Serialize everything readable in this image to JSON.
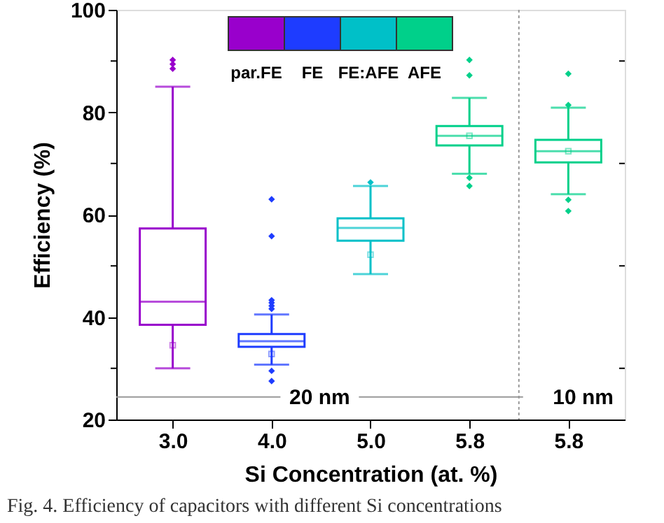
{
  "chart_data": {
    "type": "box",
    "xlabel": "Si Concentration (at. %)",
    "ylabel": "Efficiency (%)",
    "categories": [
      "3.0",
      "4.0",
      "5.0",
      "5.8",
      "5.8"
    ],
    "ylim": [
      20,
      100
    ],
    "yticks": [
      20,
      {
        "value": 30,
        "label": null
      },
      40,
      {
        "value": 50,
        "label": null
      },
      60,
      {
        "value": 70,
        "label": null
      },
      80,
      {
        "value": 90,
        "label": null
      },
      100
    ],
    "series": [
      {
        "name": "par.FE",
        "color": "#9900cc",
        "boxes": [
          {
            "low": 30,
            "q1": 38.5,
            "median": 43,
            "q3": 57.3,
            "high": 85,
            "mean": 34.5,
            "outliers": [
              88.5,
              89.4,
              90.2
            ]
          },
          null,
          null,
          null,
          null
        ]
      },
      {
        "name": "FE",
        "color": "#1e3cff",
        "boxes": [
          null,
          {
            "low": 30.7,
            "q1": 34.2,
            "median": 35.3,
            "q3": 36.7,
            "high": 40.5,
            "mean": 32.8,
            "outliers": [
              63,
              55.8,
              41.6,
              42.2,
              42.8,
              43.3,
              29.5,
              27.5
            ]
          },
          null,
          null,
          null
        ]
      },
      {
        "name": "FE:AFE",
        "color": "#00c0c8",
        "boxes": [
          null,
          null,
          {
            "low": 48.4,
            "q1": 54.9,
            "median": 57.4,
            "q3": 59.3,
            "high": 65.6,
            "mean": 52.2,
            "outliers": [
              66.3
            ]
          },
          null,
          null
        ]
      },
      {
        "name": "AFE",
        "color": "#00d08a",
        "boxes": [
          null,
          null,
          null,
          {
            "low": 68,
            "q1": 73.5,
            "median": 75.4,
            "q3": 77.3,
            "high": 82.8,
            "mean": 75.4,
            "outliers": [
              90.2,
              87.2,
              67.2,
              65.6
            ]
          },
          {
            "low": 64,
            "q1": 70.2,
            "median": 72.4,
            "q3": 74.6,
            "high": 80.9,
            "mean": 72.4,
            "outliers": [
              87.5,
              81.4,
              62.9,
              60.7
            ]
          }
        ]
      }
    ],
    "ref_lines": [
      {
        "axis": "y",
        "value": 24.4,
        "label": "20 nm",
        "color": "#999999"
      }
    ],
    "annotations": [
      "10 nm",
      "Fig. 4. Efficiency of capacitors with different Si concentrations"
    ],
    "legend": "top",
    "grid": false
  }
}
